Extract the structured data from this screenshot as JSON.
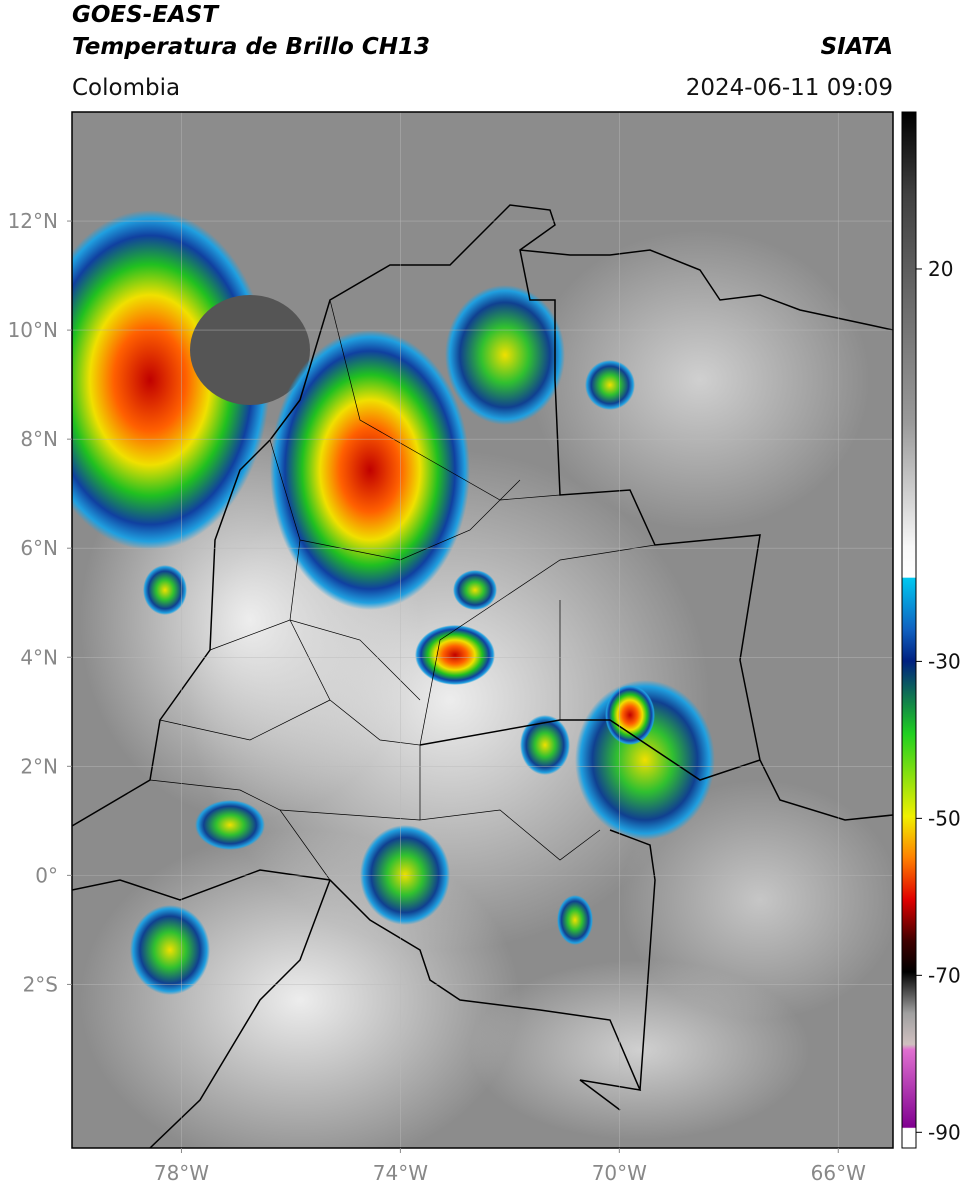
{
  "header": {
    "title_line1": "GOES-EAST",
    "title_line2": "Temperatura de Brillo CH13",
    "region": "Colombia",
    "source": "SIATA",
    "datetime": "2024-06-11 09:09"
  },
  "map": {
    "xlim": [
      -80,
      -65
    ],
    "ylim": [
      -5,
      14
    ],
    "lat_ticks": [
      {
        "value": 12,
        "label": "12°N"
      },
      {
        "value": 10,
        "label": "10°N"
      },
      {
        "value": 8,
        "label": "8°N"
      },
      {
        "value": 6,
        "label": "6°N"
      },
      {
        "value": 4,
        "label": "4°N"
      },
      {
        "value": 2,
        "label": "2°N"
      },
      {
        "value": 0,
        "label": "0°"
      },
      {
        "value": -2,
        "label": "2°S"
      }
    ],
    "lon_ticks": [
      {
        "value": -78,
        "label": "78°W"
      },
      {
        "value": -74,
        "label": "74°W"
      },
      {
        "value": -70,
        "label": "70°W"
      },
      {
        "value": -66,
        "label": "66°W"
      }
    ]
  },
  "colorbar": {
    "range": [
      -92,
      40
    ],
    "ticks": [
      20,
      -30,
      -50,
      -70,
      -90
    ]
  }
}
